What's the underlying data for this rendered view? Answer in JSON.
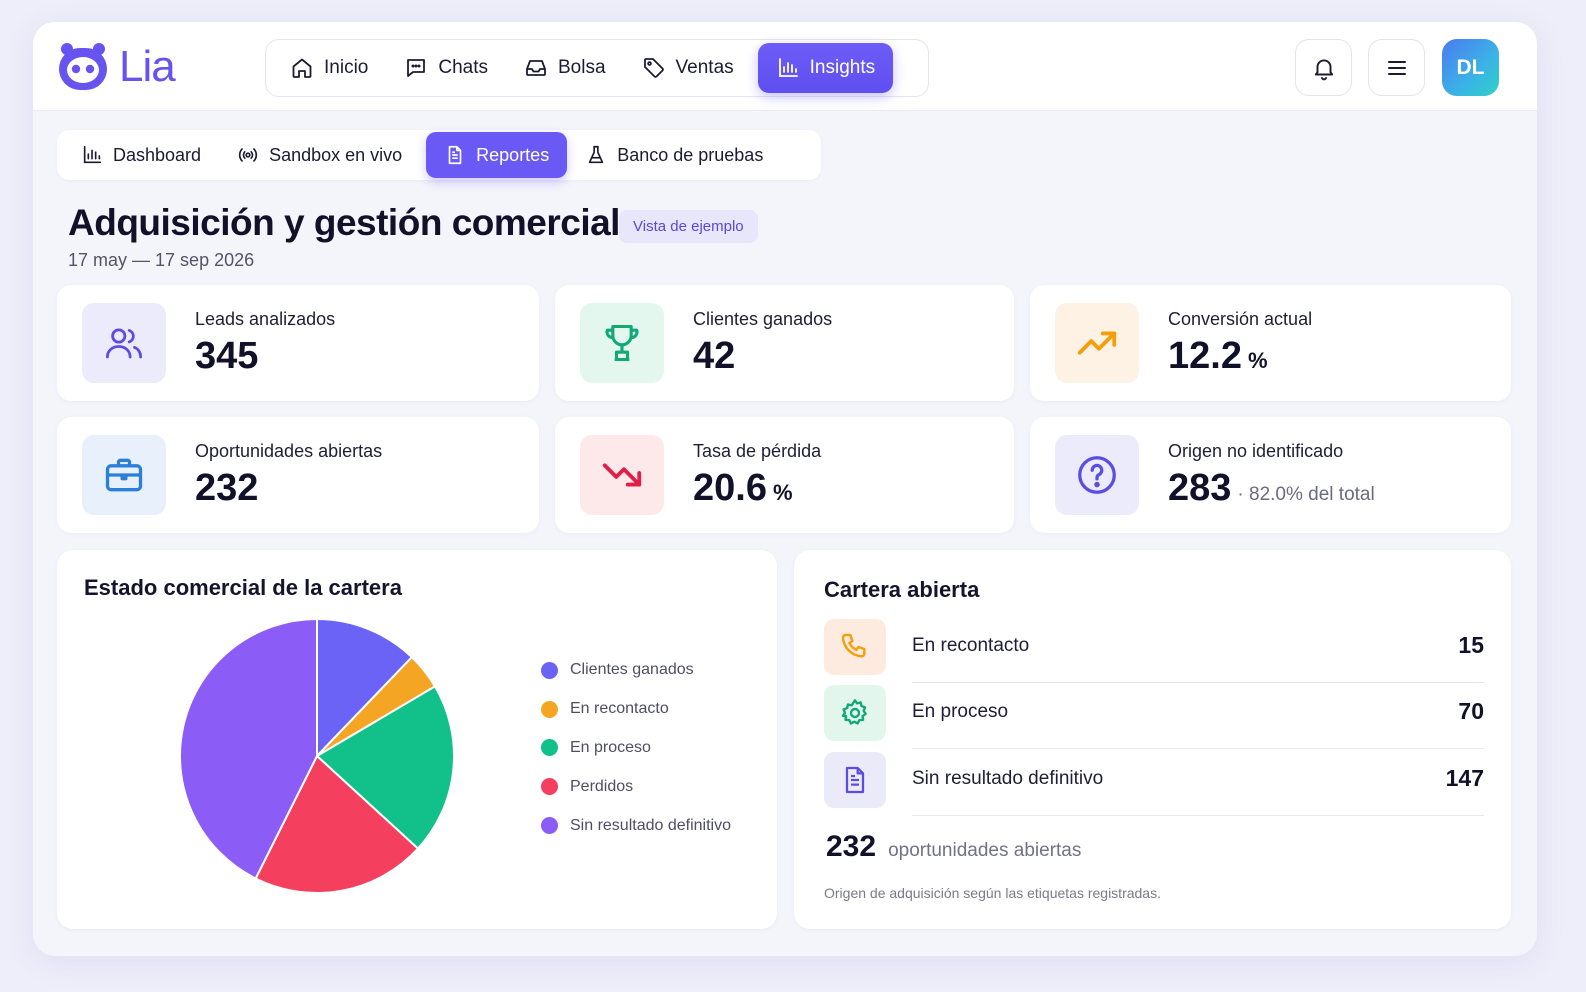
{
  "app": {
    "name": "Lia",
    "brand_color": "#6753f0"
  },
  "nav": {
    "items": [
      {
        "label": "Inicio",
        "icon": "home-icon"
      },
      {
        "label": "Chats",
        "icon": "chat-icon"
      },
      {
        "label": "Bolsa",
        "icon": "inbox-icon"
      },
      {
        "label": "Ventas",
        "icon": "tag-icon"
      },
      {
        "label": "Insights",
        "icon": "bar-chart-icon",
        "active": true
      }
    ]
  },
  "user": {
    "initials": "DL"
  },
  "subtabs": [
    {
      "label": "Dashboard",
      "icon": "bar-chart-icon"
    },
    {
      "label": "Sandbox en vivo",
      "icon": "broadcast-icon"
    },
    {
      "label": "Reportes",
      "icon": "document-icon",
      "active": true
    },
    {
      "label": "Banco de pruebas",
      "icon": "flask-icon"
    }
  ],
  "header": {
    "title": "Adquisición y gestión comercial",
    "badge": "Vista de ejemplo",
    "date_range": "17 may — 17 sep 2026"
  },
  "kpis": [
    {
      "label": "Leads analizados",
      "value": "345",
      "unit": "",
      "note": "",
      "icon": "users-icon"
    },
    {
      "label": "Clientes ganados",
      "value": "42",
      "unit": "",
      "note": "",
      "icon": "trophy-icon"
    },
    {
      "label": "Conversión actual",
      "value": "12.2",
      "unit": "%",
      "note": "",
      "icon": "trend-up-icon"
    },
    {
      "label": "Oportunidades abiertas",
      "value": "232",
      "unit": "",
      "note": "",
      "icon": "briefcase-icon"
    },
    {
      "label": "Tasa de pérdida",
      "value": "20.6",
      "unit": "%",
      "note": "",
      "icon": "trend-down-icon"
    },
    {
      "label": "Origen no identificado",
      "value": "283",
      "unit": "",
      "note": "· 82.0% del total",
      "icon": "question-icon"
    }
  ],
  "portfolio_chart": {
    "title": "Estado comercial de la cartera",
    "legend": [
      "Clientes ganados",
      "En recontacto",
      "En proceso",
      "Perdidos",
      "Sin resultado definitivo"
    ]
  },
  "chart_data": {
    "type": "pie",
    "categories": [
      "Clientes ganados",
      "En recontacto",
      "En proceso",
      "Perdidos",
      "Sin resultado definitivo"
    ],
    "values": [
      42,
      15,
      70,
      71,
      147
    ],
    "colors": [
      "#6a63f6",
      "#f5a524",
      "#12c08a",
      "#f43f5e",
      "#8b5cf6"
    ]
  },
  "open_portfolio": {
    "title": "Cartera abierta",
    "rows": [
      {
        "label": "En recontacto",
        "value": "15",
        "icon": "phone-icon"
      },
      {
        "label": "En proceso",
        "value": "70",
        "icon": "gear-icon"
      },
      {
        "label": "Sin resultado definitivo",
        "value": "147",
        "icon": "document-icon"
      }
    ],
    "total_value": "232",
    "total_label": "oportunidades abiertas",
    "footnote": "Origen de adquisición según las etiquetas registradas."
  }
}
